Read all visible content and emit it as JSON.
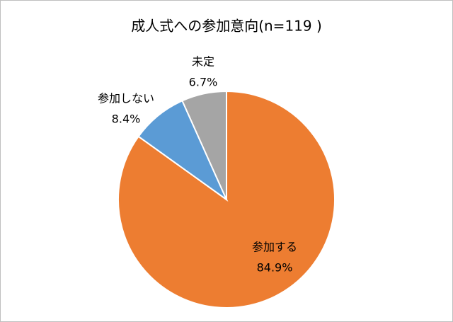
{
  "chart_data": {
    "type": "pie",
    "title": "成人式への参加意向(n=119 )",
    "categories": [
      "参加する",
      "参加しない",
      "未定"
    ],
    "values": [
      84.9,
      8.4,
      6.7
    ],
    "value_labels": [
      "84.9%",
      "8.4%",
      "6.7%"
    ],
    "colors": [
      "#ED7D31",
      "#5B9BD5",
      "#A5A5A5"
    ]
  }
}
